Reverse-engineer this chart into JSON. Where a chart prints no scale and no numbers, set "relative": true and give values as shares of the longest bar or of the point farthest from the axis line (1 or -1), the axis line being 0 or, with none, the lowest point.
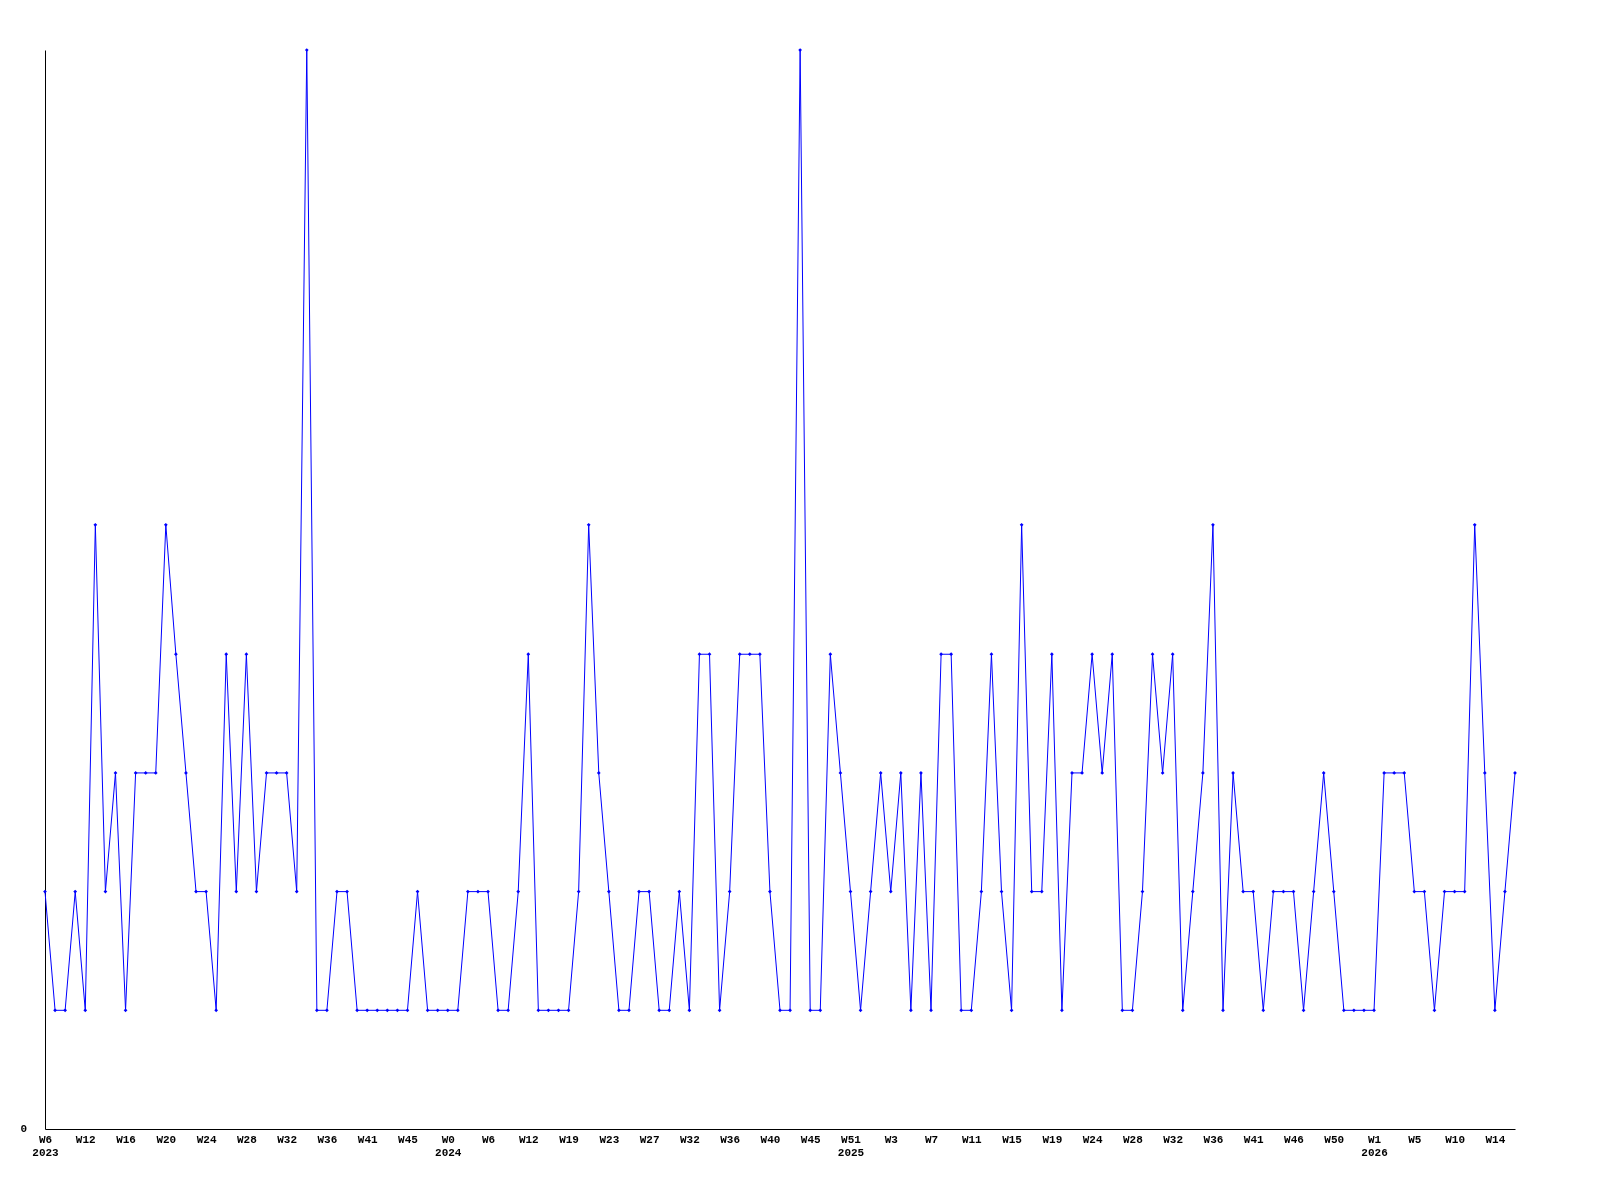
{
  "chart_data": {
    "type": "line",
    "relative": true,
    "marker": "diamond",
    "grid": false,
    "annotations": [
      "0"
    ],
    "categories": [
      "W6\n2023",
      null,
      null,
      null,
      "W12",
      null,
      null,
      null,
      "W16",
      null,
      null,
      null,
      "W20",
      null,
      null,
      null,
      "W24",
      null,
      null,
      null,
      "W28",
      null,
      null,
      null,
      "W32",
      null,
      null,
      null,
      "W36",
      null,
      null,
      null,
      "W41",
      null,
      null,
      null,
      "W45",
      null,
      null,
      null,
      "W0\n2024",
      null,
      null,
      null,
      "W6",
      null,
      null,
      null,
      "W12",
      null,
      null,
      null,
      "W19",
      null,
      null,
      null,
      "W23",
      null,
      null,
      null,
      "W27",
      null,
      null,
      null,
      "W32",
      null,
      null,
      null,
      "W36",
      null,
      null,
      null,
      "W40",
      null,
      null,
      null,
      "W45",
      null,
      null,
      null,
      "W51\n2025",
      null,
      null,
      null,
      "W3",
      null,
      null,
      null,
      "W7",
      null,
      null,
      null,
      "W11",
      null,
      null,
      null,
      "W15",
      null,
      null,
      null,
      "W19",
      null,
      null,
      null,
      "W24",
      null,
      null,
      null,
      "W28",
      null,
      null,
      null,
      "W32",
      null,
      null,
      null,
      "W36",
      null,
      null,
      null,
      "W41",
      null,
      null,
      null,
      "W46",
      null,
      null,
      null,
      "W50",
      null,
      null,
      null,
      "W1\n2026",
      null,
      null,
      null,
      "W5",
      null,
      null,
      null,
      "W10",
      null,
      null,
      null,
      "W14",
      null,
      null
    ],
    "series": [
      {
        "color": "#0000ff",
        "values": [
          0.22,
          0.11,
          0.11,
          0.22,
          0.11,
          0.56,
          0.22,
          0.33,
          0.11,
          0.33,
          0.33,
          0.33,
          0.56,
          0.44,
          0.33,
          0.22,
          0.22,
          0.11,
          0.44,
          0.22,
          0.44,
          0.22,
          0.33,
          0.33,
          0.33,
          0.22,
          1,
          0.11,
          0.11,
          0.22,
          0.22,
          0.11,
          0.11,
          0.11,
          0.11,
          0.11,
          0.11,
          0.22,
          0.11,
          0.11,
          0.11,
          0.11,
          0.22,
          0.22,
          0.22,
          0.11,
          0.11,
          0.22,
          0.44,
          0.11,
          0.11,
          0.11,
          0.11,
          0.22,
          0.56,
          0.33,
          0.22,
          0.11,
          0.11,
          0.22,
          0.22,
          0.11,
          0.11,
          0.22,
          0.11,
          0.44,
          0.44,
          0.11,
          0.22,
          0.44,
          0.44,
          0.44,
          0.22,
          0.11,
          0.11,
          1,
          0.11,
          0.11,
          0.44,
          0.33,
          0.22,
          0.11,
          0.22,
          0.33,
          0.22,
          0.33,
          0.11,
          0.33,
          0.11,
          0.44,
          0.44,
          0.11,
          0.11,
          0.22,
          0.44,
          0.22,
          0.11,
          0.56,
          0.22,
          0.22,
          0.44,
          0.11,
          0.33,
          0.33,
          0.44,
          0.33,
          0.44,
          0.11,
          0.11,
          0.22,
          0.44,
          0.33,
          0.44,
          0.11,
          0.22,
          0.33,
          0.56,
          0.11,
          0.33,
          0.22,
          0.22,
          0.11,
          0.22,
          0.22,
          0.22,
          0.11,
          0.22,
          0.33,
          0.22,
          0.11,
          0.11,
          0.11,
          0.11,
          0.33,
          0.33,
          0.33,
          0.22,
          0.22,
          0.11,
          0.22,
          0.22,
          0.22,
          0.56,
          0.33,
          0.11,
          0.22,
          0.33
        ]
      }
    ]
  }
}
